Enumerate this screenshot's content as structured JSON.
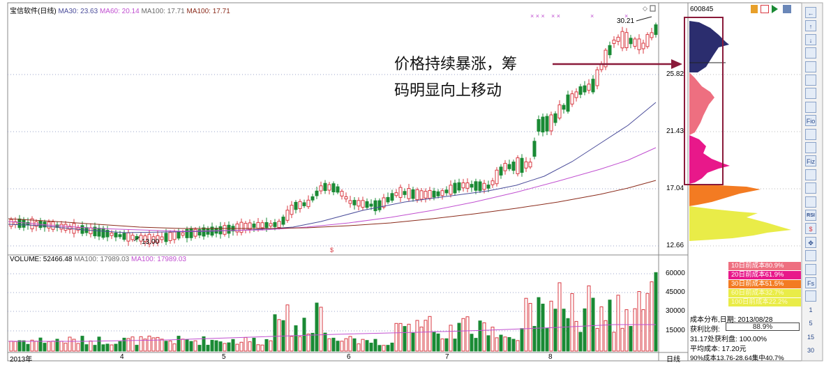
{
  "header": {
    "stock_name": "宝信软件(日线)",
    "ma30_label": "MA30: 23.63",
    "ma60_label": "MA60: 20.14",
    "ma100_label": "MA100: 17.71",
    "ma100b_label": "MA100: 17.71"
  },
  "volume_header": {
    "volume_label": "VOLUME: 52466.48",
    "ma100_label": "MA100: 17989.03",
    "ma100b_label": "MA100: 17989.03"
  },
  "price_axis": {
    "ticks": [
      "25.82",
      "21.43",
      "17.04",
      "12.66"
    ]
  },
  "volume_axis": {
    "ticks": [
      "60000",
      "45000",
      "30000",
      "15000"
    ]
  },
  "time_axis": {
    "labels": [
      "2013年",
      "4",
      "5",
      "6",
      "7",
      "8"
    ],
    "period": "日线"
  },
  "chart_labels": {
    "high": "30.21",
    "low": "13.00"
  },
  "annotation": {
    "line1": "价格持续暴涨，筹",
    "line2": "码明显向上移动"
  },
  "right_panel": {
    "code": "600845",
    "legend": [
      {
        "label": "10日前成本80.9%",
        "color": "#ee6f80"
      },
      {
        "label": "20日前成本61.9%",
        "color": "#e8188a"
      },
      {
        "label": "30日前成本51.5%",
        "color": "#f37b22"
      },
      {
        "label": "60日前成本32.7%",
        "color": "#e9ec48"
      },
      {
        "label": "100日前成本22.2%",
        "color": "#e9ec48"
      }
    ],
    "date_line": "成本分布,日期: 2013/08/28",
    "profit_label": "获利比例:",
    "profit_value": "88.9%",
    "profit_line": "31.17处获利盘: 100.00%",
    "avg_cost": "平均成本: 17.20元",
    "range_line": "90%成本13.76-28.64集中40.7%"
  },
  "toolbar": {
    "items": [
      "←",
      "↑",
      "↓",
      "",
      "",
      "",
      "",
      "",
      "Fio",
      "",
      "",
      "Fiz",
      "",
      "",
      "",
      "RSI",
      "$",
      "✥",
      "",
      "",
      "Fs",
      "",
      "1",
      "5",
      "15",
      "30"
    ]
  },
  "colors": {
    "up": "#d83a42",
    "down": "#1a8a34",
    "ma30": "#4a4c9a",
    "ma60": "#c04fd0",
    "ma100": "#8a2a1a",
    "arrow": "#8a1a3a",
    "dark_peak": "#2b2d6e"
  }
}
